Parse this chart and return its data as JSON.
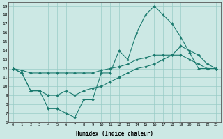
{
  "xlabel": "Humidex (Indice chaleur)",
  "bg_color": "#cce8e4",
  "grid_color": "#99ccc6",
  "line_color": "#1a7a6e",
  "xlim": [
    -0.5,
    23.5
  ],
  "ylim": [
    6,
    19.4
  ],
  "xticks": [
    0,
    1,
    2,
    3,
    4,
    5,
    6,
    7,
    8,
    9,
    10,
    11,
    12,
    13,
    14,
    15,
    16,
    17,
    18,
    19,
    20,
    21,
    22,
    23
  ],
  "yticks": [
    6,
    7,
    8,
    9,
    10,
    11,
    12,
    13,
    14,
    15,
    16,
    17,
    18,
    19
  ],
  "line_peaked": [
    12.0,
    11.5,
    9.5,
    9.5,
    7.5,
    7.5,
    7.0,
    6.5,
    8.5,
    8.5,
    11.5,
    11.5,
    14.0,
    13.0,
    16.0,
    18.0,
    19.0,
    18.0,
    17.0,
    15.5,
    13.75,
    12.0,
    12.0,
    12.0
  ],
  "line_upper": [
    12.0,
    11.8,
    11.5,
    11.5,
    11.5,
    11.5,
    11.5,
    11.5,
    11.5,
    11.5,
    11.8,
    12.0,
    12.2,
    12.5,
    13.0,
    13.2,
    13.5,
    13.5,
    13.5,
    14.5,
    14.0,
    13.5,
    12.5,
    12.0
  ],
  "line_lower": [
    12.0,
    11.5,
    9.5,
    9.5,
    9.0,
    9.0,
    9.5,
    9.0,
    9.5,
    9.8,
    10.0,
    10.5,
    11.0,
    11.5,
    12.0,
    12.2,
    12.5,
    13.0,
    13.5,
    13.5,
    13.0,
    12.5,
    12.0,
    12.0
  ]
}
